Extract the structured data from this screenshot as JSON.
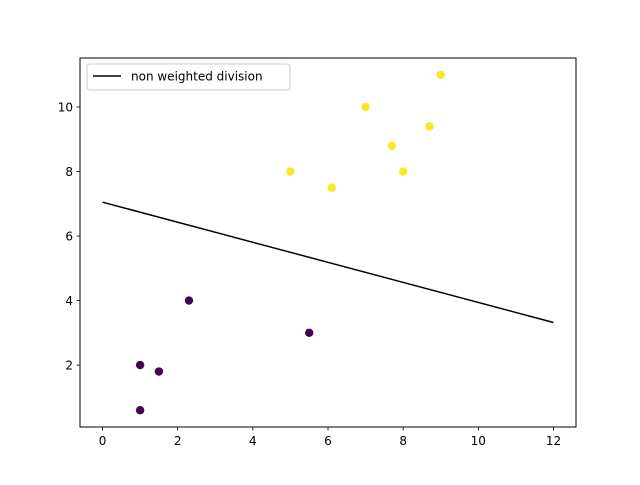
{
  "chart_data": {
    "type": "scatter",
    "title": "",
    "xlabel": "",
    "ylabel": "",
    "xlim": [
      -0.6,
      12.6
    ],
    "ylim": [
      0.08,
      11.52
    ],
    "grid": false,
    "x_ticks": [
      0,
      2,
      4,
      6,
      8,
      10,
      12
    ],
    "y_ticks": [
      2,
      4,
      6,
      8,
      10
    ],
    "legend": {
      "position": "top-left",
      "entries": [
        {
          "label": "non weighted division",
          "color": "#000000",
          "kind": "line"
        }
      ]
    },
    "series": [
      {
        "kind": "line",
        "name": "non weighted division",
        "color": "#000000",
        "points": [
          [
            0,
            7.05
          ],
          [
            12,
            3.32
          ]
        ]
      },
      {
        "kind": "scatter",
        "color": "#440154",
        "points": [
          [
            1.0,
            0.6
          ],
          [
            1.0,
            2.0
          ],
          [
            1.5,
            1.8
          ],
          [
            2.3,
            4.0
          ],
          [
            5.5,
            3.0
          ]
        ]
      },
      {
        "kind": "scatter",
        "color": "#fde725",
        "points": [
          [
            5.0,
            8.0
          ],
          [
            6.1,
            7.5
          ],
          [
            7.0,
            10.0
          ],
          [
            7.7,
            8.8
          ],
          [
            8.0,
            8.0
          ],
          [
            8.7,
            9.4
          ],
          [
            9.0,
            11.0
          ]
        ]
      }
    ]
  }
}
